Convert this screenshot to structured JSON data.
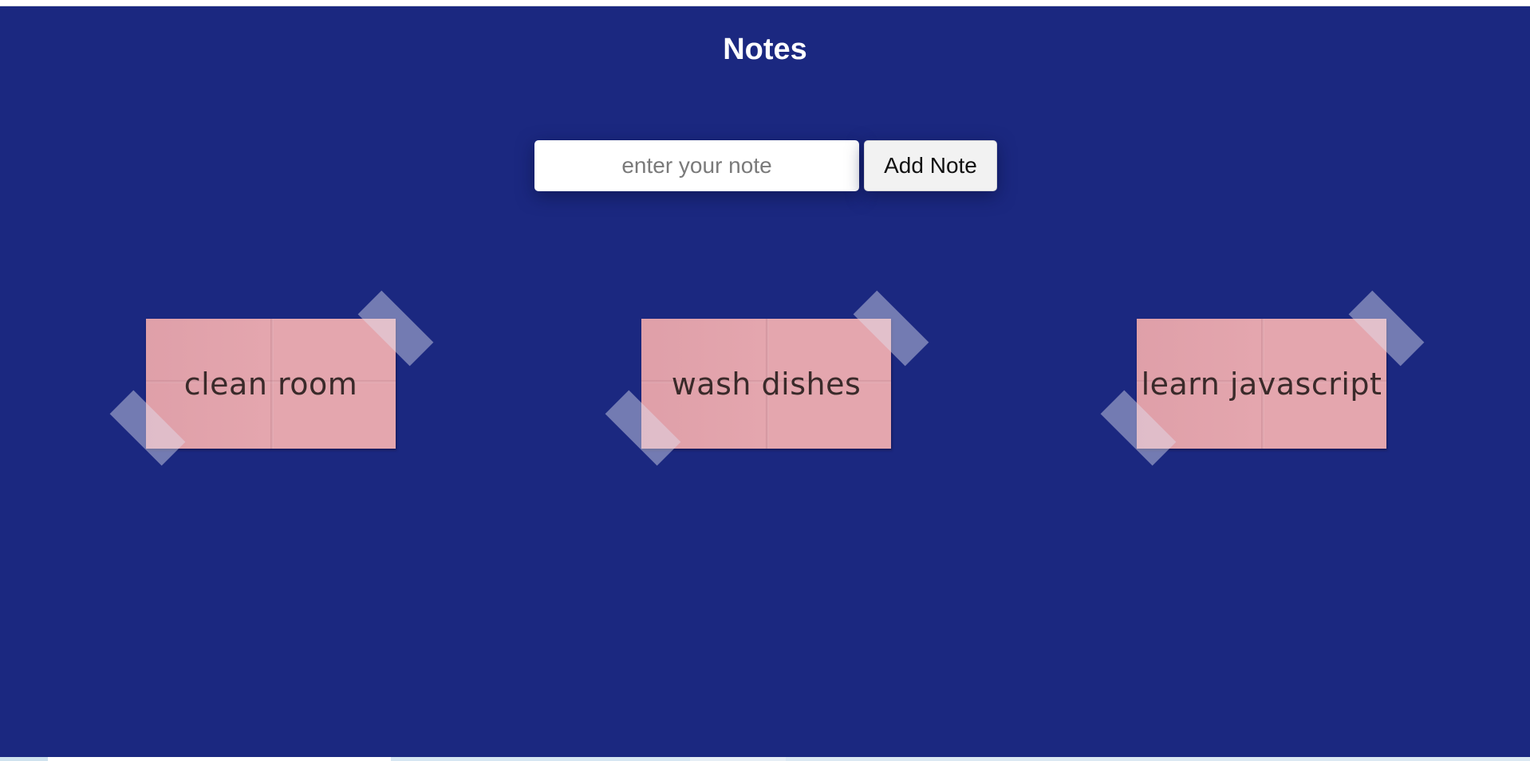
{
  "header": {
    "title": "Notes"
  },
  "form": {
    "input_placeholder": "enter your note",
    "input_value": "",
    "add_button_label": "Add Note"
  },
  "notes": [
    {
      "text": "clean room"
    },
    {
      "text": "wash dishes"
    },
    {
      "text": "learn javascript"
    }
  ],
  "colors": {
    "background": "#1b2880",
    "note": "#e4a6ae",
    "tape": "rgba(225,225,240,0.45)"
  }
}
